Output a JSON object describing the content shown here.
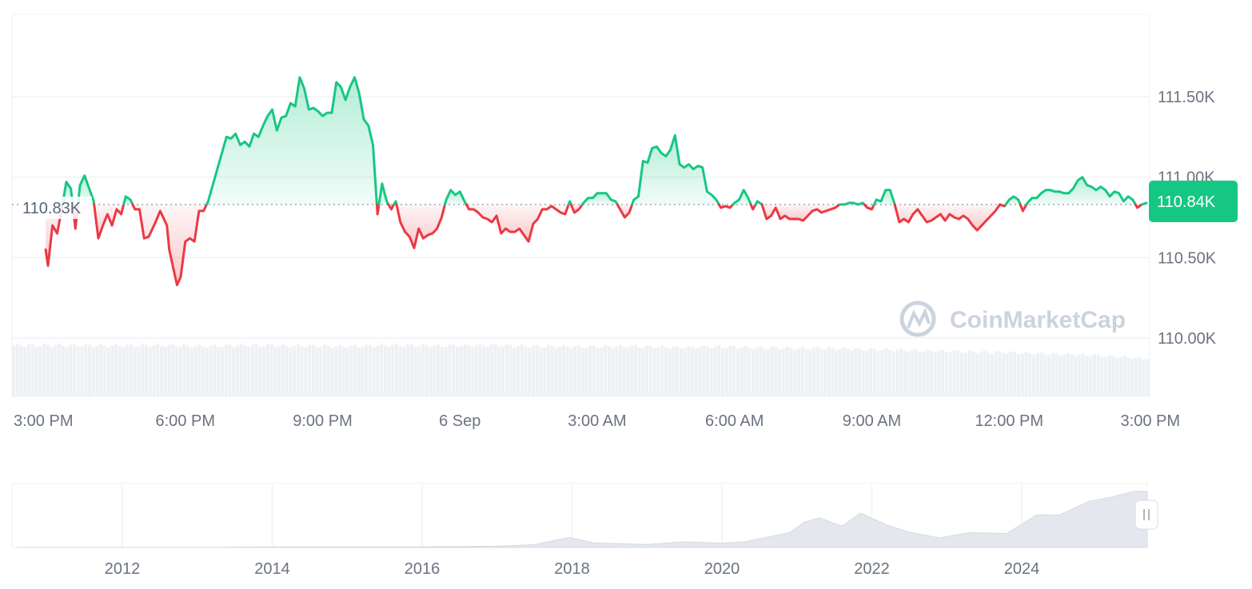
{
  "chart_data": {
    "type": "line",
    "title": "",
    "xlabel": "",
    "ylabel": "",
    "ylim": [
      109.75,
      111.98
    ],
    "grid": true,
    "y_ticks": [
      {
        "value": 110.0,
        "label": "110.00K"
      },
      {
        "value": 110.5,
        "label": "110.50K"
      },
      {
        "value": 111.0,
        "label": "111.00K"
      },
      {
        "value": 111.5,
        "label": "111.50K"
      }
    ],
    "x_ticks": [
      {
        "value": 0,
        "label": "3:00 PM"
      },
      {
        "value": 3,
        "label": "6:00 PM"
      },
      {
        "value": 6,
        "label": "9:00 PM"
      },
      {
        "value": 9,
        "label": "6 Sep"
      },
      {
        "value": 12,
        "label": "3:00 AM"
      },
      {
        "value": 15,
        "label": "6:00 AM"
      },
      {
        "value": 18,
        "label": "9:00 AM"
      },
      {
        "value": 21,
        "label": "12:00 PM"
      },
      {
        "value": 24,
        "label": "3:00 PM"
      }
    ],
    "x_unit": "hours since 3:00 PM",
    "reference_value": 110.83,
    "reference_label": "110.83K",
    "current_value": 110.84,
    "current_label": "110.84K",
    "colors": {
      "above": "#16c784",
      "below": "#ea3943",
      "grid": "#eff2f5",
      "badge": "#16c784"
    },
    "price_series": [
      [
        -0.05,
        110.55
      ],
      [
        0.0,
        110.45
      ],
      [
        0.1,
        110.7
      ],
      [
        0.2,
        110.65
      ],
      [
        0.3,
        110.8
      ],
      [
        0.4,
        110.97
      ],
      [
        0.5,
        110.93
      ],
      [
        0.6,
        110.68
      ],
      [
        0.7,
        110.95
      ],
      [
        0.8,
        111.01
      ],
      [
        0.9,
        110.93
      ],
      [
        1.0,
        110.85
      ],
      [
        1.1,
        110.62
      ],
      [
        1.2,
        110.7
      ],
      [
        1.3,
        110.77
      ],
      [
        1.4,
        110.7
      ],
      [
        1.5,
        110.8
      ],
      [
        1.6,
        110.77
      ],
      [
        1.7,
        110.88
      ],
      [
        1.8,
        110.86
      ],
      [
        1.9,
        110.8
      ],
      [
        2.0,
        110.8
      ],
      [
        2.1,
        110.62
      ],
      [
        2.2,
        110.63
      ],
      [
        2.35,
        110.72
      ],
      [
        2.45,
        110.79
      ],
      [
        2.6,
        110.7
      ],
      [
        2.65,
        110.55
      ],
      [
        2.75,
        110.42
      ],
      [
        2.82,
        110.33
      ],
      [
        2.9,
        110.38
      ],
      [
        3.0,
        110.6
      ],
      [
        3.1,
        110.62
      ],
      [
        3.2,
        110.6
      ],
      [
        3.3,
        110.79
      ],
      [
        3.4,
        110.79
      ],
      [
        3.5,
        110.85
      ],
      [
        3.7,
        111.05
      ],
      [
        3.9,
        111.25
      ],
      [
        4.0,
        111.24
      ],
      [
        4.1,
        111.27
      ],
      [
        4.2,
        111.2
      ],
      [
        4.3,
        111.22
      ],
      [
        4.4,
        111.19
      ],
      [
        4.5,
        111.27
      ],
      [
        4.6,
        111.25
      ],
      [
        4.7,
        111.32
      ],
      [
        4.8,
        111.38
      ],
      [
        4.9,
        111.42
      ],
      [
        5.0,
        111.29
      ],
      [
        5.1,
        111.37
      ],
      [
        5.2,
        111.38
      ],
      [
        5.3,
        111.46
      ],
      [
        5.4,
        111.44
      ],
      [
        5.5,
        111.62
      ],
      [
        5.6,
        111.55
      ],
      [
        5.7,
        111.42
      ],
      [
        5.8,
        111.43
      ],
      [
        5.9,
        111.41
      ],
      [
        6.0,
        111.38
      ],
      [
        6.1,
        111.4
      ],
      [
        6.2,
        111.4
      ],
      [
        6.3,
        111.59
      ],
      [
        6.4,
        111.56
      ],
      [
        6.5,
        111.48
      ],
      [
        6.6,
        111.56
      ],
      [
        6.7,
        111.62
      ],
      [
        6.8,
        111.52
      ],
      [
        6.9,
        111.36
      ],
      [
        7.0,
        111.32
      ],
      [
        7.1,
        111.2
      ],
      [
        7.2,
        110.77
      ],
      [
        7.3,
        110.96
      ],
      [
        7.4,
        110.85
      ],
      [
        7.5,
        110.8
      ],
      [
        7.6,
        110.85
      ],
      [
        7.7,
        110.72
      ],
      [
        7.8,
        110.66
      ],
      [
        7.9,
        110.63
      ],
      [
        8.0,
        110.56
      ],
      [
        8.1,
        110.68
      ],
      [
        8.2,
        110.62
      ],
      [
        8.3,
        110.64
      ],
      [
        8.4,
        110.65
      ],
      [
        8.5,
        110.68
      ],
      [
        8.6,
        110.75
      ],
      [
        8.7,
        110.86
      ],
      [
        8.8,
        110.92
      ],
      [
        8.9,
        110.89
      ],
      [
        9.0,
        110.91
      ],
      [
        9.1,
        110.85
      ],
      [
        9.2,
        110.8
      ],
      [
        9.3,
        110.8
      ],
      [
        9.4,
        110.78
      ],
      [
        9.5,
        110.75
      ],
      [
        9.6,
        110.74
      ],
      [
        9.7,
        110.72
      ],
      [
        9.8,
        110.76
      ],
      [
        9.9,
        110.65
      ],
      [
        10.0,
        110.68
      ],
      [
        10.1,
        110.66
      ],
      [
        10.2,
        110.66
      ],
      [
        10.3,
        110.68
      ],
      [
        10.4,
        110.64
      ],
      [
        10.5,
        110.6
      ],
      [
        10.6,
        110.71
      ],
      [
        10.7,
        110.74
      ],
      [
        10.8,
        110.8
      ],
      [
        10.9,
        110.8
      ],
      [
        11.0,
        110.82
      ],
      [
        11.1,
        110.8
      ],
      [
        11.2,
        110.78
      ],
      [
        11.3,
        110.77
      ],
      [
        11.4,
        110.85
      ],
      [
        11.5,
        110.78
      ],
      [
        11.6,
        110.8
      ],
      [
        11.7,
        110.84
      ],
      [
        11.8,
        110.87
      ],
      [
        11.9,
        110.87
      ],
      [
        12.0,
        110.9
      ],
      [
        12.1,
        110.9
      ],
      [
        12.2,
        110.9
      ],
      [
        12.3,
        110.86
      ],
      [
        12.4,
        110.85
      ],
      [
        12.5,
        110.8
      ],
      [
        12.6,
        110.75
      ],
      [
        12.7,
        110.78
      ],
      [
        12.8,
        110.86
      ],
      [
        12.9,
        110.88
      ],
      [
        13.0,
        111.1
      ],
      [
        13.1,
        111.09
      ],
      [
        13.2,
        111.18
      ],
      [
        13.3,
        111.19
      ],
      [
        13.4,
        111.15
      ],
      [
        13.5,
        111.13
      ],
      [
        13.6,
        111.17
      ],
      [
        13.7,
        111.26
      ],
      [
        13.8,
        111.08
      ],
      [
        13.9,
        111.06
      ],
      [
        14.0,
        111.08
      ],
      [
        14.1,
        111.05
      ],
      [
        14.2,
        111.07
      ],
      [
        14.3,
        111.06
      ],
      [
        14.4,
        110.91
      ],
      [
        14.5,
        110.89
      ],
      [
        14.6,
        110.86
      ],
      [
        14.7,
        110.81
      ],
      [
        14.8,
        110.82
      ],
      [
        14.9,
        110.81
      ],
      [
        15.0,
        110.84
      ],
      [
        15.1,
        110.86
      ],
      [
        15.2,
        110.92
      ],
      [
        15.3,
        110.87
      ],
      [
        15.4,
        110.8
      ],
      [
        15.5,
        110.85
      ],
      [
        15.6,
        110.83
      ],
      [
        15.7,
        110.74
      ],
      [
        15.8,
        110.76
      ],
      [
        15.9,
        110.81
      ],
      [
        16.0,
        110.74
      ],
      [
        16.1,
        110.76
      ],
      [
        16.2,
        110.74
      ],
      [
        16.3,
        110.74
      ],
      [
        16.4,
        110.74
      ],
      [
        16.5,
        110.73
      ],
      [
        16.6,
        110.76
      ],
      [
        16.7,
        110.79
      ],
      [
        16.8,
        110.8
      ],
      [
        16.9,
        110.78
      ],
      [
        17.0,
        110.79
      ],
      [
        17.1,
        110.8
      ],
      [
        17.2,
        110.81
      ],
      [
        17.3,
        110.83
      ],
      [
        17.4,
        110.83
      ],
      [
        17.5,
        110.84
      ],
      [
        17.6,
        110.84
      ],
      [
        17.7,
        110.83
      ],
      [
        17.8,
        110.84
      ],
      [
        17.9,
        110.81
      ],
      [
        18.0,
        110.8
      ],
      [
        18.1,
        110.86
      ],
      [
        18.2,
        110.85
      ],
      [
        18.3,
        110.92
      ],
      [
        18.4,
        110.92
      ],
      [
        18.5,
        110.83
      ],
      [
        18.6,
        110.72
      ],
      [
        18.7,
        110.74
      ],
      [
        18.8,
        110.72
      ],
      [
        18.9,
        110.77
      ],
      [
        19.0,
        110.8
      ],
      [
        19.1,
        110.76
      ],
      [
        19.2,
        110.72
      ],
      [
        19.3,
        110.73
      ],
      [
        19.4,
        110.75
      ],
      [
        19.5,
        110.77
      ],
      [
        19.6,
        110.73
      ],
      [
        19.7,
        110.77
      ],
      [
        19.8,
        110.75
      ],
      [
        19.9,
        110.74
      ],
      [
        20.0,
        110.76
      ],
      [
        20.1,
        110.74
      ],
      [
        20.2,
        110.7
      ],
      [
        20.3,
        110.67
      ],
      [
        20.4,
        110.7
      ],
      [
        20.5,
        110.73
      ],
      [
        20.6,
        110.76
      ],
      [
        20.7,
        110.79
      ],
      [
        20.8,
        110.83
      ],
      [
        20.9,
        110.82
      ],
      [
        21.0,
        110.86
      ],
      [
        21.1,
        110.88
      ],
      [
        21.2,
        110.86
      ],
      [
        21.3,
        110.79
      ],
      [
        21.4,
        110.84
      ],
      [
        21.5,
        110.87
      ],
      [
        21.6,
        110.87
      ],
      [
        21.7,
        110.9
      ],
      [
        21.8,
        110.92
      ],
      [
        21.9,
        110.92
      ],
      [
        22.0,
        110.91
      ],
      [
        22.1,
        110.91
      ],
      [
        22.2,
        110.9
      ],
      [
        22.3,
        110.9
      ],
      [
        22.4,
        110.93
      ],
      [
        22.5,
        110.98
      ],
      [
        22.6,
        111.0
      ],
      [
        22.7,
        110.95
      ],
      [
        22.8,
        110.94
      ],
      [
        22.9,
        110.92
      ],
      [
        23.0,
        110.94
      ],
      [
        23.1,
        110.92
      ],
      [
        23.2,
        110.88
      ],
      [
        23.3,
        110.91
      ],
      [
        23.4,
        110.9
      ],
      [
        23.5,
        110.85
      ],
      [
        23.6,
        110.88
      ],
      [
        23.7,
        110.86
      ],
      [
        23.8,
        110.81
      ],
      [
        23.9,
        110.83
      ],
      [
        24.0,
        110.84
      ]
    ],
    "volume_series": [
      1.0,
      1.0,
      0.99,
      1.0,
      0.98,
      1.0,
      0.99,
      0.98,
      1.0,
      0.99,
      1.0,
      0.98,
      0.97,
      0.98,
      0.96,
      0.97,
      0.95,
      0.94,
      0.92,
      0.9,
      0.88,
      0.86,
      0.83,
      0.8,
      0.74
    ],
    "navigator": {
      "type": "area",
      "x_labels": [
        "2012",
        "2014",
        "2016",
        "2018",
        "2020",
        "2022",
        "2024"
      ],
      "x": [
        2010.6,
        2011,
        2012,
        2013,
        2014,
        2015,
        2016,
        2017,
        2017.5,
        2017.96,
        2018.3,
        2019,
        2019.5,
        2020,
        2020.3,
        2020.9,
        2021.1,
        2021.3,
        2021.6,
        2021.85,
        2022.2,
        2022.5,
        2022.9,
        2023.3,
        2023.8,
        2024.2,
        2024.5,
        2024.9,
        2025.2,
        2025.5,
        2025.7
      ],
      "y": [
        0,
        0,
        0,
        0,
        0.01,
        0.01,
        0.01,
        0.02,
        0.05,
        0.17,
        0.08,
        0.05,
        0.1,
        0.07,
        0.1,
        0.25,
        0.45,
        0.5,
        0.38,
        0.58,
        0.4,
        0.26,
        0.17,
        0.25,
        0.25,
        0.55,
        0.58,
        0.78,
        0.9,
        0.95,
        1.0
      ]
    }
  },
  "watermark": {
    "text": "CoinMarketCap"
  },
  "colors": {
    "text_muted": "#6b7280"
  }
}
